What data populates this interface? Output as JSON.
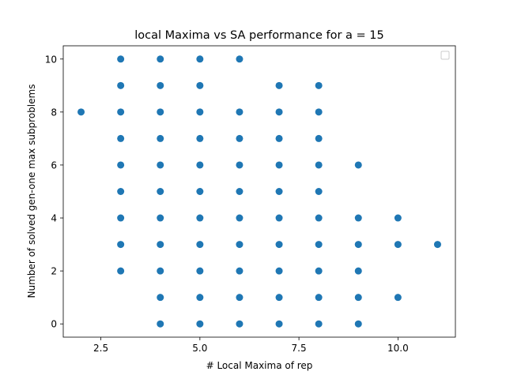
{
  "chart_data": {
    "type": "scatter",
    "title": "local Maxima vs SA performance for a = 15",
    "xlabel": "# Local Maxima of rep",
    "ylabel": "Number of solved gen-one max subproblems",
    "xlim": [
      1.55,
      11.45
    ],
    "ylim": [
      -0.5,
      10.5
    ],
    "xticks": [
      2.5,
      5.0,
      7.5,
      10.0
    ],
    "xtick_labels": [
      "2.5",
      "5.0",
      "7.5",
      "10.0"
    ],
    "yticks": [
      0,
      2,
      4,
      6,
      8,
      10
    ],
    "ytick_labels": [
      "0",
      "2",
      "4",
      "6",
      "8",
      "10"
    ],
    "grid": false,
    "legend": "upper right, empty",
    "marker_color": "#1f77b4",
    "points": [
      {
        "x": 2,
        "y": 8
      },
      {
        "x": 3,
        "y": 10
      },
      {
        "x": 3,
        "y": 9
      },
      {
        "x": 3,
        "y": 8
      },
      {
        "x": 3,
        "y": 7
      },
      {
        "x": 3,
        "y": 6
      },
      {
        "x": 3,
        "y": 5
      },
      {
        "x": 3,
        "y": 4
      },
      {
        "x": 3,
        "y": 3
      },
      {
        "x": 3,
        "y": 2
      },
      {
        "x": 4,
        "y": 10
      },
      {
        "x": 4,
        "y": 9
      },
      {
        "x": 4,
        "y": 8
      },
      {
        "x": 4,
        "y": 7
      },
      {
        "x": 4,
        "y": 6
      },
      {
        "x": 4,
        "y": 5
      },
      {
        "x": 4,
        "y": 4
      },
      {
        "x": 4,
        "y": 3
      },
      {
        "x": 4,
        "y": 2
      },
      {
        "x": 4,
        "y": 1
      },
      {
        "x": 4,
        "y": 0
      },
      {
        "x": 5,
        "y": 10
      },
      {
        "x": 5,
        "y": 9
      },
      {
        "x": 5,
        "y": 8
      },
      {
        "x": 5,
        "y": 7
      },
      {
        "x": 5,
        "y": 6
      },
      {
        "x": 5,
        "y": 5
      },
      {
        "x": 5,
        "y": 4
      },
      {
        "x": 5,
        "y": 3
      },
      {
        "x": 5,
        "y": 2
      },
      {
        "x": 5,
        "y": 1
      },
      {
        "x": 5,
        "y": 0
      },
      {
        "x": 6,
        "y": 10
      },
      {
        "x": 6,
        "y": 8
      },
      {
        "x": 6,
        "y": 7
      },
      {
        "x": 6,
        "y": 6
      },
      {
        "x": 6,
        "y": 5
      },
      {
        "x": 6,
        "y": 4
      },
      {
        "x": 6,
        "y": 3
      },
      {
        "x": 6,
        "y": 2
      },
      {
        "x": 6,
        "y": 1
      },
      {
        "x": 6,
        "y": 0
      },
      {
        "x": 7,
        "y": 9
      },
      {
        "x": 7,
        "y": 8
      },
      {
        "x": 7,
        "y": 7
      },
      {
        "x": 7,
        "y": 6
      },
      {
        "x": 7,
        "y": 5
      },
      {
        "x": 7,
        "y": 4
      },
      {
        "x": 7,
        "y": 3
      },
      {
        "x": 7,
        "y": 2
      },
      {
        "x": 7,
        "y": 1
      },
      {
        "x": 7,
        "y": 0
      },
      {
        "x": 8,
        "y": 9
      },
      {
        "x": 8,
        "y": 8
      },
      {
        "x": 8,
        "y": 7
      },
      {
        "x": 8,
        "y": 6
      },
      {
        "x": 8,
        "y": 5
      },
      {
        "x": 8,
        "y": 4
      },
      {
        "x": 8,
        "y": 3
      },
      {
        "x": 8,
        "y": 2
      },
      {
        "x": 8,
        "y": 1
      },
      {
        "x": 8,
        "y": 0
      },
      {
        "x": 9,
        "y": 6
      },
      {
        "x": 9,
        "y": 4
      },
      {
        "x": 9,
        "y": 3
      },
      {
        "x": 9,
        "y": 2
      },
      {
        "x": 9,
        "y": 1
      },
      {
        "x": 9,
        "y": 0
      },
      {
        "x": 10,
        "y": 4
      },
      {
        "x": 10,
        "y": 3
      },
      {
        "x": 10,
        "y": 1
      },
      {
        "x": 11,
        "y": 3
      }
    ]
  }
}
